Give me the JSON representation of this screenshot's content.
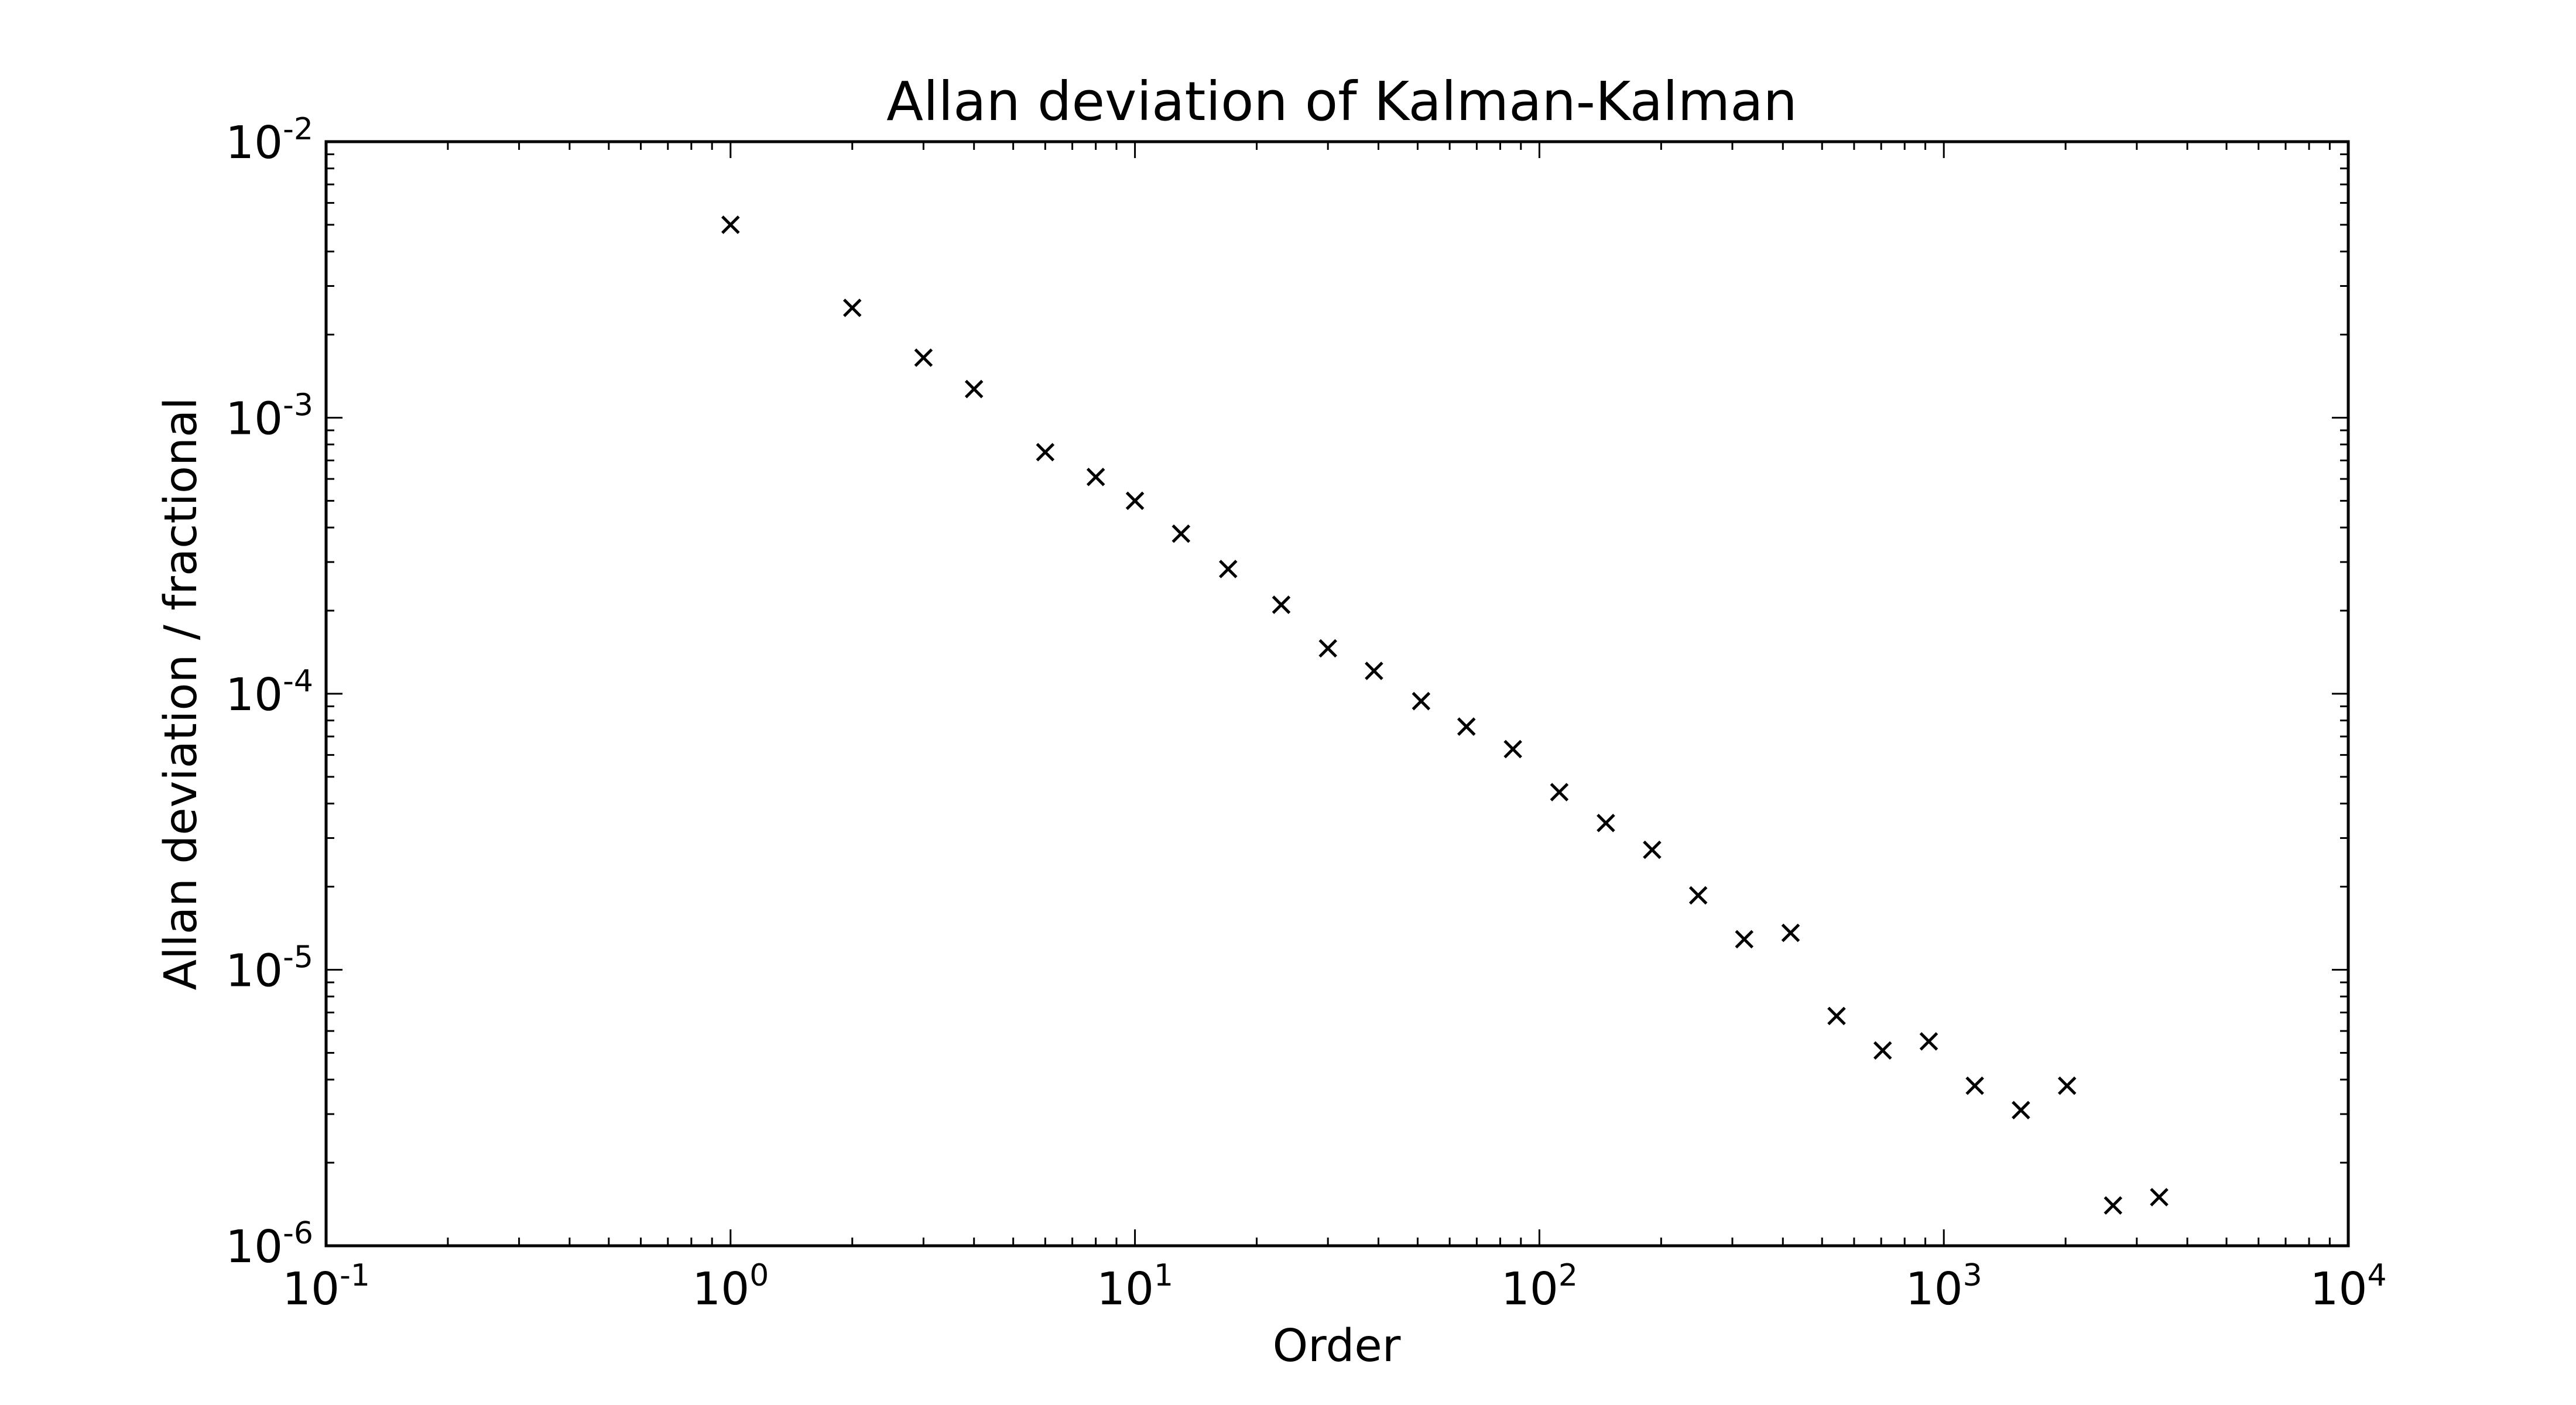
{
  "chart_data": {
    "type": "scatter",
    "title": "Allan deviation of Kalman-Kalman",
    "xlabel": "Order",
    "ylabel": "Allan deviation / fractional",
    "x_scale": "log",
    "y_scale": "log",
    "xlim": [
      0.1,
      10000
    ],
    "ylim": [
      1e-06,
      0.01
    ],
    "grid": false,
    "legend": "none",
    "marker": "x",
    "marker_color": "#000000",
    "x_ticks": [
      {
        "value": 0.1,
        "base": "10",
        "exp": "-1"
      },
      {
        "value": 1,
        "base": "10",
        "exp": "0"
      },
      {
        "value": 10,
        "base": "10",
        "exp": "1"
      },
      {
        "value": 100,
        "base": "10",
        "exp": "2"
      },
      {
        "value": 1000,
        "base": "10",
        "exp": "3"
      },
      {
        "value": 10000,
        "base": "10",
        "exp": "4"
      }
    ],
    "y_ticks": [
      {
        "value": 1e-06,
        "base": "10",
        "exp": "-6"
      },
      {
        "value": 1e-05,
        "base": "10",
        "exp": "-5"
      },
      {
        "value": 0.0001,
        "base": "10",
        "exp": "-4"
      },
      {
        "value": 0.001,
        "base": "10",
        "exp": "-3"
      },
      {
        "value": 0.01,
        "base": "10",
        "exp": "-2"
      }
    ],
    "series": [
      {
        "x": [
          1,
          2,
          3,
          4,
          6,
          8,
          10,
          13,
          17,
          23,
          30,
          39,
          51,
          66,
          86,
          112,
          146,
          190,
          247,
          321,
          418,
          543,
          706,
          918,
          1193,
          1551,
          2017,
          2621,
          3408
        ],
        "y": [
          0.005,
          0.0025,
          0.00165,
          0.00127,
          0.00075,
          0.00061,
          0.0005,
          0.00038,
          0.000283,
          0.00021,
          0.000146,
          0.000121,
          9.4e-05,
          7.6e-05,
          6.3e-05,
          4.4e-05,
          3.4e-05,
          2.72e-05,
          1.86e-05,
          1.29e-05,
          1.36e-05,
          6.8e-06,
          5.1e-06,
          5.5e-06,
          3.8e-06,
          3.1e-06,
          3.8e-06,
          1.4e-06,
          1.5e-06
        ]
      }
    ]
  }
}
